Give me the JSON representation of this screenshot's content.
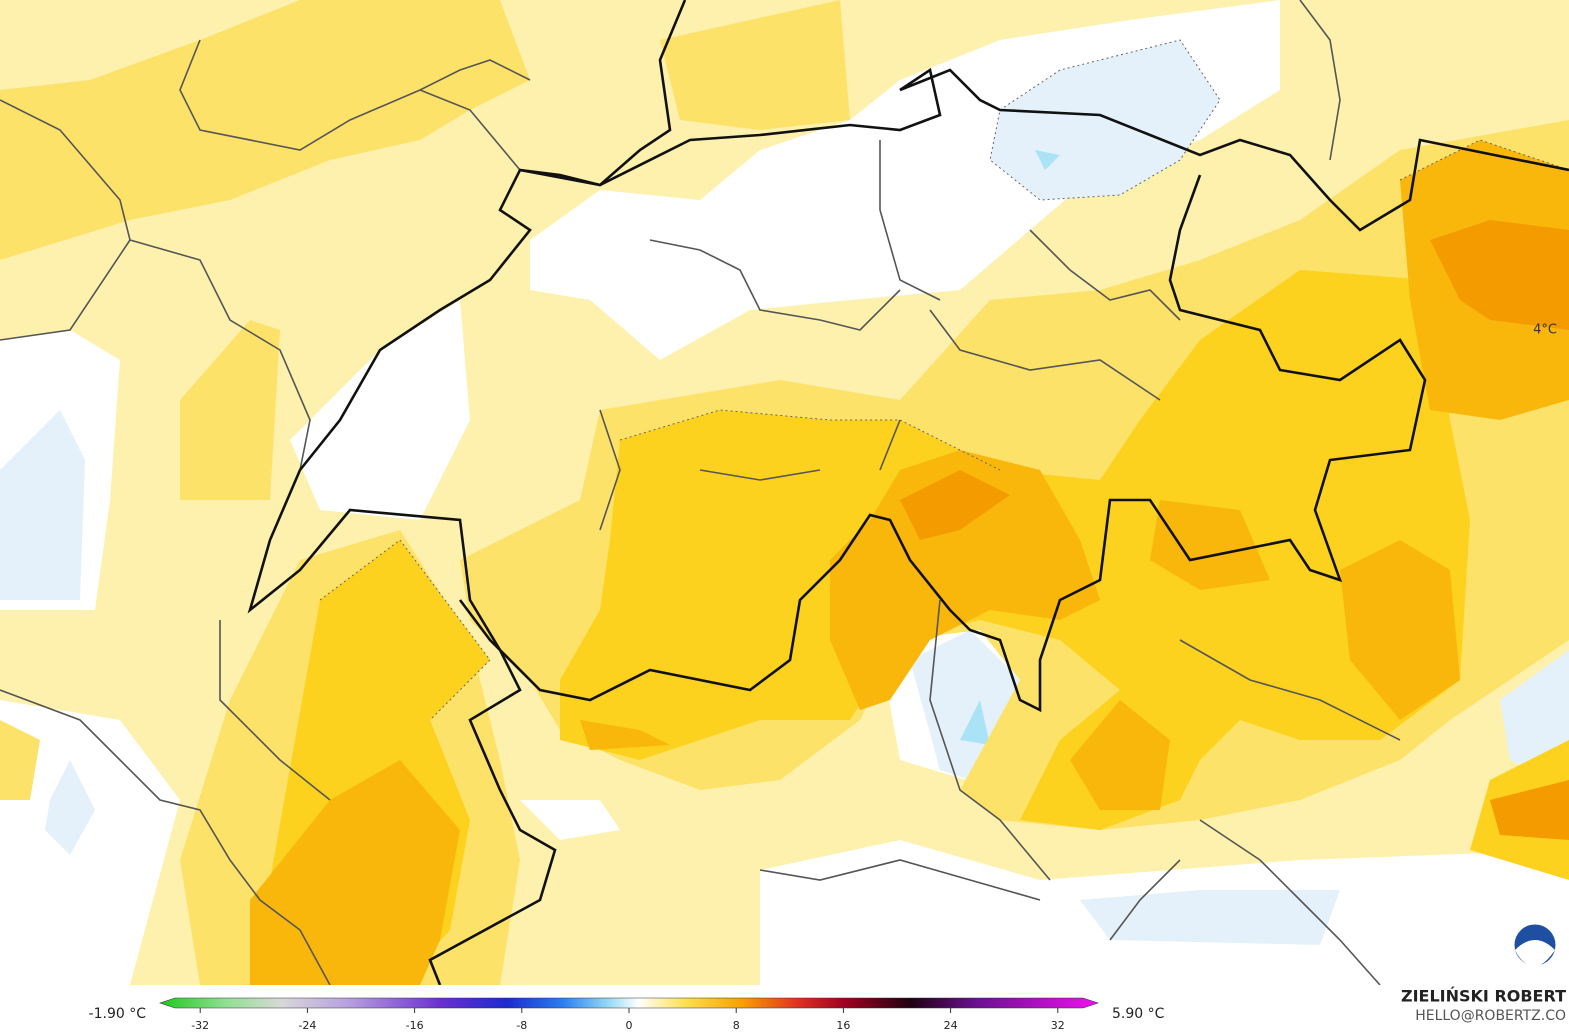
{
  "map": {
    "area_label": "4°C",
    "colorbar": {
      "min_label": "-1.90 °C",
      "max_label": "5.90 °C",
      "lim": [
        -35,
        35
      ],
      "ticks": [
        -32,
        -24,
        -16,
        -8,
        0,
        8,
        16,
        24,
        32
      ]
    },
    "credit": {
      "name": "ZIELIŃSKI ROBERT",
      "contact": "HELLO@ROBERTZ.CO"
    }
  }
}
